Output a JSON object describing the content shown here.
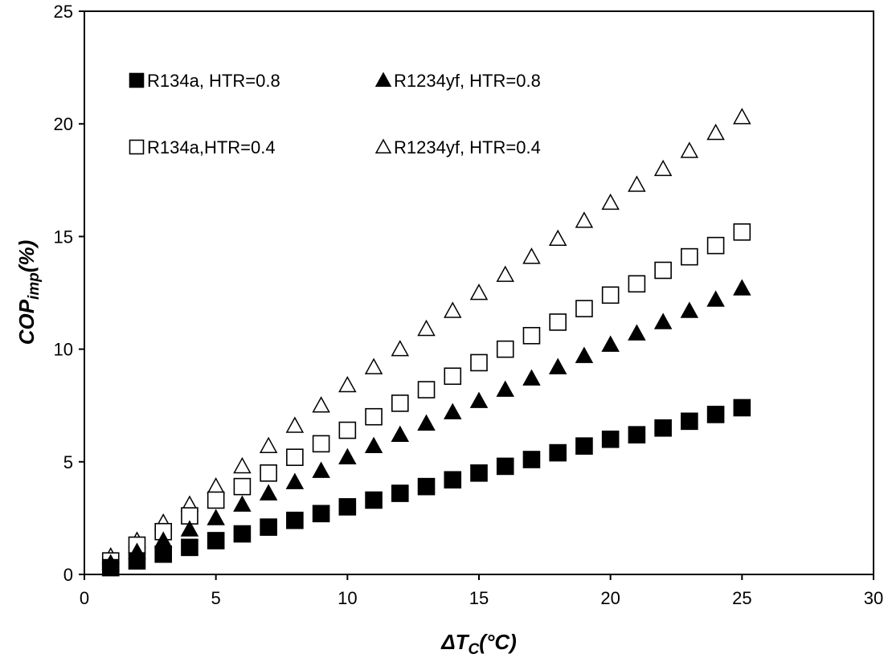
{
  "chart_data": {
    "type": "scatter",
    "title": "",
    "xlabel": {
      "main": "ΔT",
      "sub": "C",
      "unit": "(°C)"
    },
    "ylabel": {
      "main": "COP",
      "sub": "imp",
      "unit": "(%)"
    },
    "xlim": [
      0,
      30
    ],
    "ylim": [
      0,
      25
    ],
    "xticks": [
      0,
      5,
      10,
      15,
      20,
      25,
      30
    ],
    "yticks": [
      0,
      5,
      10,
      15,
      20,
      25
    ],
    "grid": false,
    "legend_position": "top-left, inside",
    "x": [
      1,
      2,
      3,
      4,
      5,
      6,
      7,
      8,
      9,
      10,
      11,
      12,
      13,
      14,
      15,
      16,
      17,
      18,
      19,
      20,
      21,
      22,
      23,
      24,
      25
    ],
    "series": [
      {
        "name": "R134a, HTR=0.8",
        "marker": "filled-square",
        "values": [
          0.3,
          0.6,
          0.9,
          1.2,
          1.5,
          1.8,
          2.1,
          2.4,
          2.7,
          3.0,
          3.3,
          3.6,
          3.9,
          4.2,
          4.5,
          4.8,
          5.1,
          5.4,
          5.7,
          6.0,
          6.2,
          6.5,
          6.8,
          7.1,
          7.4
        ]
      },
      {
        "name": "R1234yf, HTR=0.8",
        "marker": "filled-triangle",
        "values": [
          0.5,
          1.0,
          1.5,
          2.0,
          2.5,
          3.1,
          3.6,
          4.1,
          4.6,
          5.2,
          5.7,
          6.2,
          6.7,
          7.2,
          7.7,
          8.2,
          8.7,
          9.2,
          9.7,
          10.2,
          10.7,
          11.2,
          11.7,
          12.2,
          12.7
        ]
      },
      {
        "name": "R134a,HTR=0.4",
        "marker": "open-square",
        "values": [
          0.6,
          1.3,
          1.9,
          2.6,
          3.3,
          3.9,
          4.5,
          5.2,
          5.8,
          6.4,
          7.0,
          7.6,
          8.2,
          8.8,
          9.4,
          10.0,
          10.6,
          11.2,
          11.8,
          12.4,
          12.9,
          13.5,
          14.1,
          14.6,
          15.2
        ]
      },
      {
        "name": "R1234yf, HTR=0.4",
        "marker": "open-triangle",
        "values": [
          0.8,
          1.5,
          2.3,
          3.1,
          3.9,
          4.8,
          5.7,
          6.6,
          7.5,
          8.4,
          9.2,
          10.0,
          10.9,
          11.7,
          12.5,
          13.3,
          14.1,
          14.9,
          15.7,
          16.5,
          17.3,
          18.0,
          18.8,
          19.6,
          20.3
        ]
      }
    ],
    "colors": {
      "marker": "#000000",
      "background": "#ffffff",
      "axis": "#000000"
    }
  }
}
